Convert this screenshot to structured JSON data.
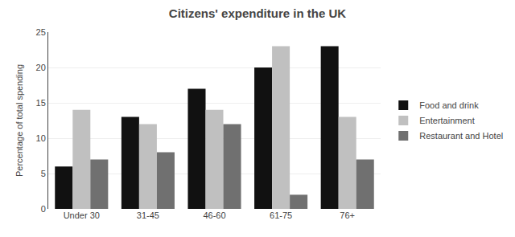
{
  "chart_data": {
    "type": "bar",
    "title": "Citizens' expenditure in the UK",
    "ylabel": "Percentage of total spending",
    "categories": [
      "Under 30",
      "31-45",
      "46-60",
      "61-75",
      "76+"
    ],
    "series": [
      {
        "name": "Food and drink",
        "color": "#111111",
        "values": [
          6,
          13,
          17,
          20,
          23
        ]
      },
      {
        "name": "Entertainment",
        "color": "#c0c0c0",
        "values": [
          14,
          12,
          14,
          23,
          13
        ]
      },
      {
        "name": "Restaurant and Hotel",
        "color": "#707070",
        "values": [
          7,
          8,
          12,
          2,
          7
        ]
      }
    ],
    "ylim": [
      0,
      25
    ],
    "yticks": [
      0,
      5,
      10,
      15,
      20,
      25
    ],
    "grid": true,
    "legend": "right"
  }
}
